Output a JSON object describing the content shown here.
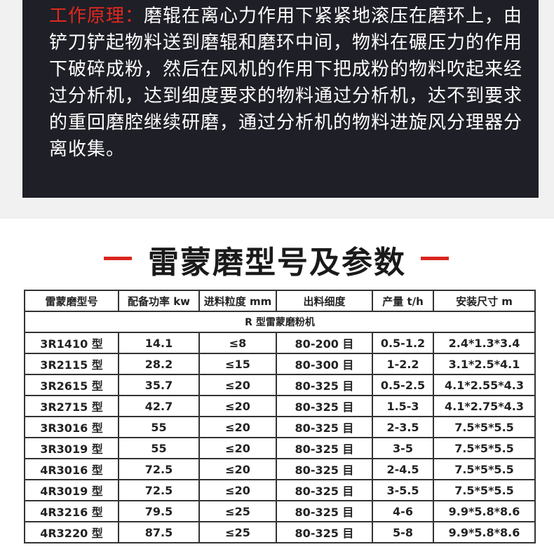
{
  "intro": {
    "label": "工作原理：",
    "text": "磨辊在离心力作用下紧紧地滚压在磨环上，由铲刀铲起物料送到磨辊和磨环中间，物料在碾压力的作用下破碎成粉，然后在风机的作用下把成粉的物料吹起来经过分析机，达到细度要求的物料通过分析机，达不到要求的重回磨腔继续研磨，通过分析机的物料进旋风分理器分离收集。"
  },
  "section": {
    "title": "雷蒙磨型号及参数"
  },
  "table": {
    "headers": [
      "雷蒙磨型号",
      "配备功率 kw",
      "进料粒度 mm",
      "出料细度",
      "产量 t/h",
      "安装尺寸 m"
    ],
    "group": "R 型雷蒙磨粉机",
    "rows": [
      [
        "3R1410 型",
        "14.1",
        "≤8",
        "80-200 目",
        "0.5-1.2",
        "2.4*1.3*3.4"
      ],
      [
        "3R2115 型",
        "28.2",
        "≤15",
        "80-300 目",
        "1-2.2",
        "3.1*2.5*4.1"
      ],
      [
        "3R2615 型",
        "35.7",
        "≤20",
        "80-325 目",
        "0.5-2.5",
        "4.1*2.55*4.3"
      ],
      [
        "3R2715 型",
        "42.7",
        "≤20",
        "80-325 目",
        "1.5-3",
        "4.1*2.75*4.3"
      ],
      [
        "3R3016 型",
        "55",
        "≤20",
        "80-325 目",
        "2-3.5",
        "7.5*5*5.5"
      ],
      [
        "3R3019 型",
        "55",
        "≤20",
        "80-325 目",
        "3-5",
        "7.5*5*5.5"
      ],
      [
        "4R3016 型",
        "72.5",
        "≤20",
        "80-325 目",
        "2-4.5",
        "7.5*5*5.5"
      ],
      [
        "4R3019 型",
        "72.5",
        "≤20",
        "80-325 目",
        "3-5.5",
        "7.5*5*5.5"
      ],
      [
        "4R3216 型",
        "79.5",
        "≤25",
        "80-325 目",
        "4-6",
        "9.9*5.8*8.6"
      ],
      [
        "4R3220 型",
        "87.5",
        "≤25",
        "80-325 目",
        "5-8",
        "9.9*5.8*8.6"
      ]
    ]
  }
}
